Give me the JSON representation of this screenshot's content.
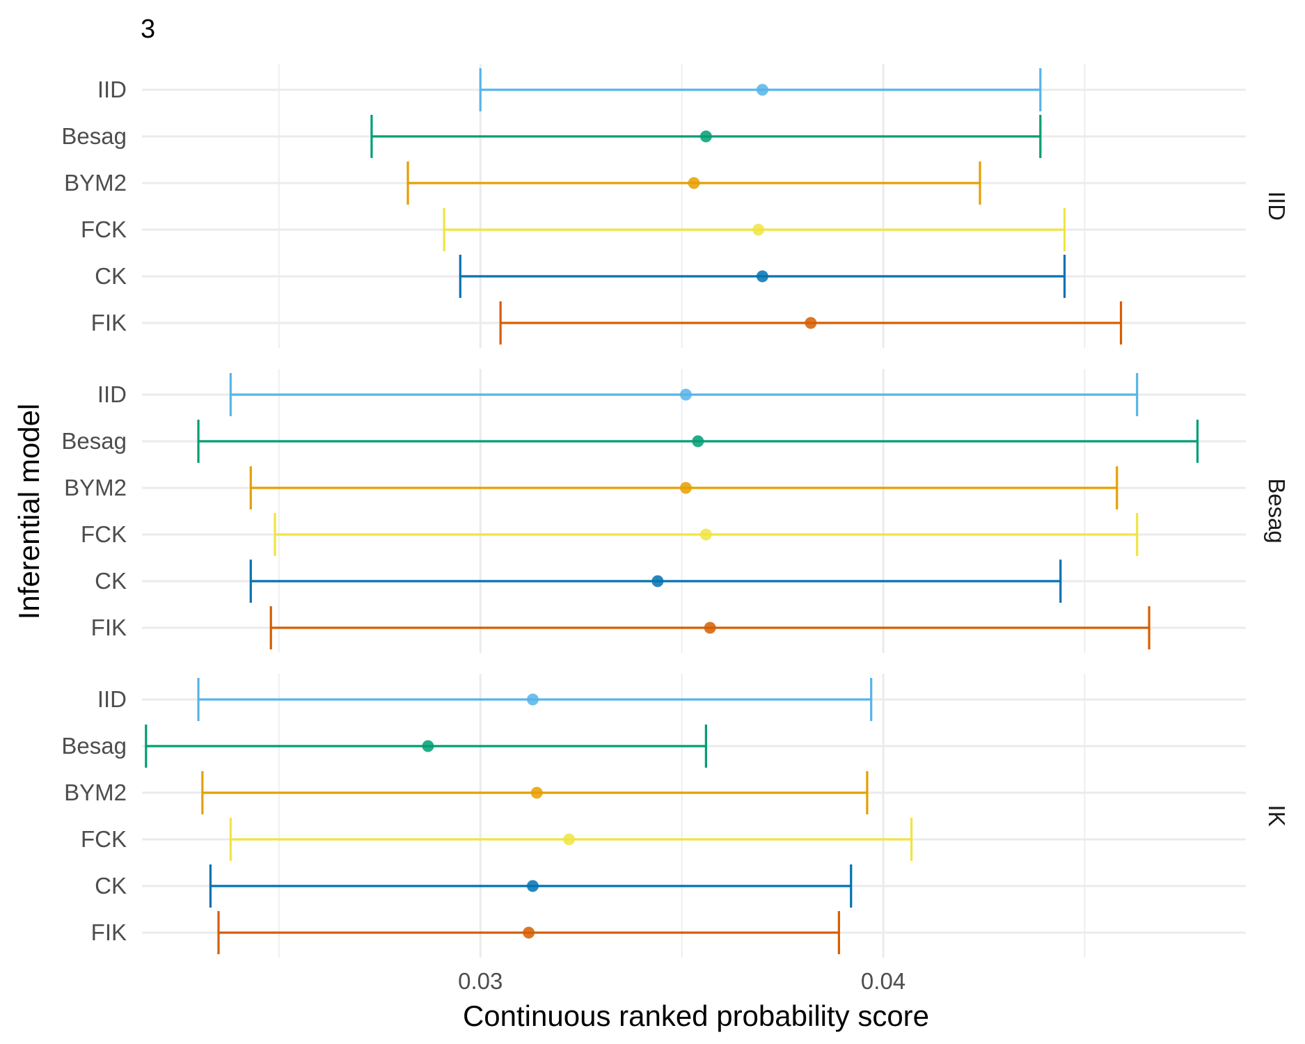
{
  "panel_tag": "3",
  "chart_data": {
    "type": "errorbar",
    "xlabel": "Continuous ranked probability score",
    "ylabel": "Inferential model",
    "xlim": [
      0.0216,
      0.049
    ],
    "x_ticks": [
      0.03,
      0.04
    ],
    "x_tick_labels": [
      "0.03",
      "0.04"
    ],
    "x_minor_gridlines": [
      0.025,
      0.035,
      0.045
    ],
    "grid": true,
    "categories": [
      "IID",
      "Besag",
      "BYM2",
      "FCK",
      "CK",
      "FIK"
    ],
    "colors": {
      "IID": "#56B4E9",
      "Besag": "#009E73",
      "BYM2": "#E69F00",
      "FCK": "#F0E442",
      "CK": "#0072B2",
      "FIK": "#D55E00"
    },
    "facets": [
      {
        "label": "IID",
        "rows": [
          {
            "model": "IID",
            "low": 0.03,
            "mid": 0.037,
            "high": 0.0439
          },
          {
            "model": "Besag",
            "low": 0.0273,
            "mid": 0.0356,
            "high": 0.0439
          },
          {
            "model": "BYM2",
            "low": 0.0282,
            "mid": 0.0353,
            "high": 0.0424
          },
          {
            "model": "FCK",
            "low": 0.0291,
            "mid": 0.0369,
            "high": 0.0445
          },
          {
            "model": "CK",
            "low": 0.0295,
            "mid": 0.037,
            "high": 0.0445
          },
          {
            "model": "FIK",
            "low": 0.0305,
            "mid": 0.0382,
            "high": 0.0459
          }
        ]
      },
      {
        "label": "Besag",
        "rows": [
          {
            "model": "IID",
            "low": 0.0238,
            "mid": 0.0351,
            "high": 0.0463
          },
          {
            "model": "Besag",
            "low": 0.023,
            "mid": 0.0354,
            "high": 0.0478
          },
          {
            "model": "BYM2",
            "low": 0.0243,
            "mid": 0.0351,
            "high": 0.0458
          },
          {
            "model": "FCK",
            "low": 0.0249,
            "mid": 0.0356,
            "high": 0.0463
          },
          {
            "model": "CK",
            "low": 0.0243,
            "mid": 0.0344,
            "high": 0.0444
          },
          {
            "model": "FIK",
            "low": 0.0248,
            "mid": 0.0357,
            "high": 0.0466
          }
        ]
      },
      {
        "label": "IK",
        "rows": [
          {
            "model": "IID",
            "low": 0.023,
            "mid": 0.0313,
            "high": 0.0397
          },
          {
            "model": "Besag",
            "low": 0.0217,
            "mid": 0.0287,
            "high": 0.0356
          },
          {
            "model": "BYM2",
            "low": 0.0231,
            "mid": 0.0314,
            "high": 0.0396
          },
          {
            "model": "FCK",
            "low": 0.0238,
            "mid": 0.0322,
            "high": 0.0407
          },
          {
            "model": "CK",
            "low": 0.0233,
            "mid": 0.0313,
            "high": 0.0392
          },
          {
            "model": "FIK",
            "low": 0.0235,
            "mid": 0.0312,
            "high": 0.0389
          }
        ]
      }
    ]
  }
}
